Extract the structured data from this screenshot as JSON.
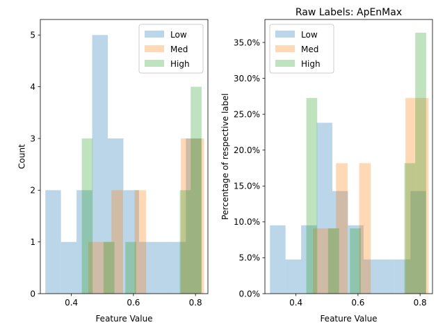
{
  "chart_data": [
    {
      "type": "bar",
      "title": "",
      "xlabel": "Feature Value",
      "ylabel": "Count",
      "xlim": [
        0.3,
        0.84
      ],
      "ylim": [
        0,
        5.3
      ],
      "xticks": [
        0.4,
        0.6,
        0.8
      ],
      "yticks": [
        0,
        1,
        2,
        3,
        4,
        5
      ],
      "ytick_format": "integer",
      "legend": {
        "placement": "top-right",
        "entries": [
          "Low",
          "Med",
          "High"
        ]
      },
      "series": [
        {
          "name": "Low",
          "color": "#1f77b4",
          "bin_width": 0.0503,
          "bin_starts": [
            0.3162,
            0.3665,
            0.4168,
            0.4671,
            0.5174,
            0.5677,
            0.618,
            0.6683,
            0.7186,
            0.7689
          ],
          "values": [
            2,
            1,
            2,
            5,
            3,
            2,
            1,
            1,
            1,
            3
          ]
        },
        {
          "name": "Med",
          "color": "#ff7f0e",
          "bin_width": 0.0373,
          "bin_starts": [
            0.4545,
            0.4918,
            0.5291,
            0.5664,
            0.6037,
            0.641,
            0.6783,
            0.7156,
            0.7529,
            0.7902
          ],
          "values": [
            1,
            1,
            2,
            0,
            2,
            0,
            0,
            0,
            3,
            3
          ]
        },
        {
          "name": "High",
          "color": "#2ca02c",
          "bin_width": 0.0351,
          "bin_starts": [
            0.4335,
            0.4686,
            0.5037,
            0.5388,
            0.5739,
            0.609,
            0.6441,
            0.6792,
            0.7143,
            0.7494,
            0.7845
          ],
          "values": [
            3,
            0,
            1,
            0,
            1,
            0,
            0,
            0,
            0,
            2,
            4
          ]
        }
      ]
    },
    {
      "type": "bar",
      "title": "Raw Labels: ApEnMax",
      "xlabel": "Feature Value",
      "ylabel": "Percentage of respective label",
      "xlim": [
        0.3,
        0.84
      ],
      "ylim": [
        0,
        0.382
      ],
      "xticks": [
        0.4,
        0.6,
        0.8
      ],
      "yticks": [
        0,
        0.05,
        0.1,
        0.15,
        0.2,
        0.25,
        0.3,
        0.35
      ],
      "ytick_format": "percent",
      "legend": {
        "placement": "top-left",
        "entries": [
          "Low",
          "Med",
          "High"
        ]
      },
      "series": [
        {
          "name": "Low",
          "color": "#1f77b4",
          "bin_width": 0.0503,
          "bin_starts": [
            0.3162,
            0.3665,
            0.4168,
            0.4671,
            0.5174,
            0.5677,
            0.618,
            0.6683,
            0.7186,
            0.7689
          ],
          "values": [
            0.0952,
            0.0476,
            0.0952,
            0.2381,
            0.1429,
            0.0952,
            0.0476,
            0.0476,
            0.0476,
            0.1429
          ]
        },
        {
          "name": "Med",
          "color": "#ff7f0e",
          "bin_width": 0.0373,
          "bin_starts": [
            0.4545,
            0.4918,
            0.5291,
            0.5664,
            0.6037,
            0.641,
            0.6783,
            0.7156,
            0.7529,
            0.7902
          ],
          "values": [
            0.0909,
            0.0909,
            0.1818,
            0,
            0.1818,
            0,
            0,
            0,
            0.2727,
            0.2727
          ]
        },
        {
          "name": "High",
          "color": "#2ca02c",
          "bin_width": 0.0351,
          "bin_starts": [
            0.4335,
            0.4686,
            0.5037,
            0.5388,
            0.5739,
            0.609,
            0.6441,
            0.6792,
            0.7143,
            0.7494,
            0.7845
          ],
          "values": [
            0.2727,
            0,
            0.0909,
            0,
            0.0909,
            0,
            0,
            0,
            0,
            0.1818,
            0.3636
          ]
        }
      ]
    }
  ]
}
